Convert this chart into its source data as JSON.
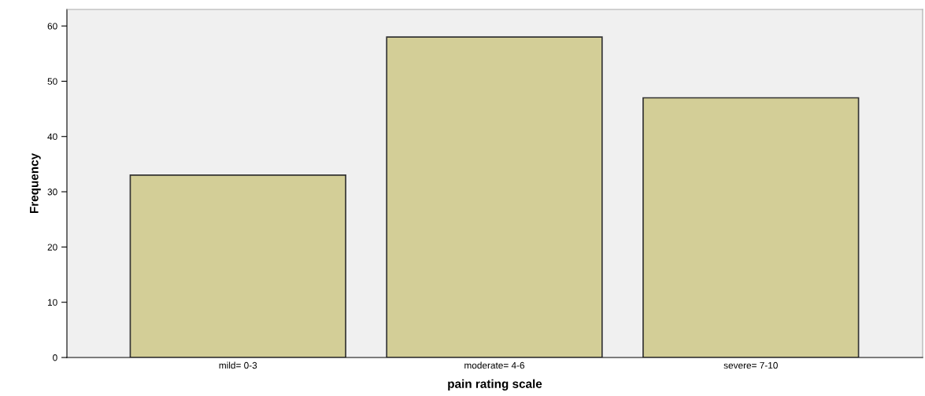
{
  "chart_data": {
    "type": "bar",
    "xlabel": "pain rating scale",
    "ylabel": "Frequency",
    "categories": [
      "mild= 0-3",
      "moderate= 4-6",
      "severe= 7-10"
    ],
    "values": [
      33,
      58,
      47
    ],
    "color": "#d3ce97",
    "ylim": [
      0,
      63
    ],
    "yticks": [
      0,
      10,
      20,
      30,
      40,
      50,
      60
    ],
    "grid": false
  }
}
